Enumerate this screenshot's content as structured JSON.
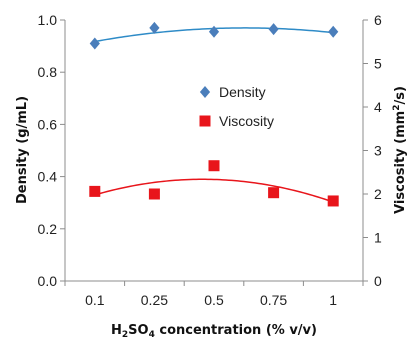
{
  "chart_data": {
    "type": "scatter",
    "categories": [
      "0.1",
      "0.25",
      "0.5",
      "0.75",
      "1"
    ],
    "xlabel": {
      "main": "H",
      "sub1": "2",
      "mid": "SO",
      "sub2": "4",
      "rest": " concentration (% v/v)"
    },
    "ylabel_left": "Density (g/mL)",
    "ylabel_right": {
      "main": "Viscosity (mm",
      "sup": "2",
      "rest": "/s)"
    },
    "ylim_left": [
      0,
      1.0
    ],
    "yticks_left": [
      "0.0",
      "0.2",
      "0.4",
      "0.6",
      "0.8",
      "1.0"
    ],
    "ylim_right": [
      0,
      6
    ],
    "yticks_right": [
      "0",
      "1",
      "2",
      "3",
      "4",
      "5",
      "6"
    ],
    "grid": false,
    "legend_position": "center",
    "series": [
      {
        "name": "Density",
        "axis": "left",
        "marker": "diamond",
        "color": "#4A7EBB",
        "trend_color": "#2E8BC7",
        "values": [
          0.91,
          0.97,
          0.955,
          0.965,
          0.955
        ]
      },
      {
        "name": "Viscosity",
        "axis": "right",
        "marker": "square",
        "color": "#E8151B",
        "trend_color": "#E8151B",
        "values": [
          2.06,
          2.0,
          2.65,
          2.03,
          1.84
        ]
      }
    ]
  }
}
